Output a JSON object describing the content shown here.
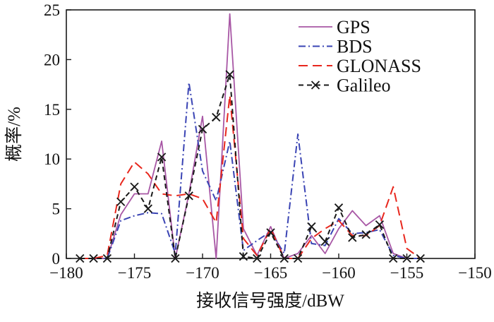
{
  "figure": {
    "background": "#ffffff",
    "frame_color": "#1a1a1a"
  },
  "chart_data": {
    "type": "line",
    "title": "",
    "xlabel": "接收信号强度/dBW",
    "ylabel": "概率/%",
    "xlim": [
      -180,
      -150
    ],
    "ylim": [
      0,
      25
    ],
    "xticks": [
      -180,
      -175,
      -170,
      -165,
      -160,
      -155,
      -150
    ],
    "yticks": [
      0,
      5,
      10,
      15,
      20,
      25
    ],
    "grid": false,
    "legend_position": "top-right",
    "x": [
      -179,
      -178,
      -177,
      -176,
      -175,
      -174,
      -173,
      -172,
      -171,
      -170,
      -169,
      -168,
      -167,
      -166,
      -165,
      -164,
      -163,
      -162,
      -161,
      -160,
      -159,
      -158,
      -157,
      -156,
      -155,
      -154
    ],
    "series": [
      {
        "name": "GPS",
        "color": "#a857a5",
        "line_style": "solid",
        "marker": "none",
        "values": [
          0,
          0,
          0,
          4.4,
          6.5,
          6.5,
          11.8,
          0,
          6.5,
          14.3,
          0,
          24.6,
          3.0,
          0.3,
          3.2,
          0,
          0.5,
          2.3,
          0.5,
          3.0,
          4.8,
          3.3,
          4.3,
          0.5,
          0,
          0
        ]
      },
      {
        "name": "BDS",
        "color": "#3a44b4",
        "line_style": "dash-dot",
        "marker": "none",
        "values": [
          0,
          0,
          0,
          3.8,
          4.3,
          4.6,
          4.5,
          0.5,
          17.7,
          8.8,
          5.8,
          11.8,
          0.8,
          1.8,
          2.7,
          0.5,
          12.5,
          1.5,
          1.3,
          4.0,
          2.5,
          2.6,
          2.9,
          0.3,
          0,
          0
        ]
      },
      {
        "name": "GLONASS",
        "color": "#e8271d",
        "line_style": "dashed",
        "marker": "none",
        "values": [
          0,
          0,
          0.3,
          7.5,
          9.7,
          8.5,
          6.5,
          6.3,
          6.5,
          6.0,
          3.6,
          16.4,
          2.0,
          0.3,
          3.0,
          0,
          0,
          2.0,
          3.0,
          3.8,
          2.3,
          2.3,
          3.3,
          7.2,
          1.0,
          0
        ]
      },
      {
        "name": "Galileo",
        "color": "#1a1a1a",
        "line_style": "short-dash",
        "marker": "x",
        "values": [
          0,
          0,
          0,
          5.7,
          7.2,
          5.0,
          10.2,
          0,
          6.3,
          13.0,
          14.2,
          18.5,
          0.2,
          0,
          2.6,
          0,
          0,
          3.2,
          1.7,
          5.1,
          2.1,
          2.4,
          3.4,
          0,
          0,
          0
        ]
      }
    ]
  }
}
